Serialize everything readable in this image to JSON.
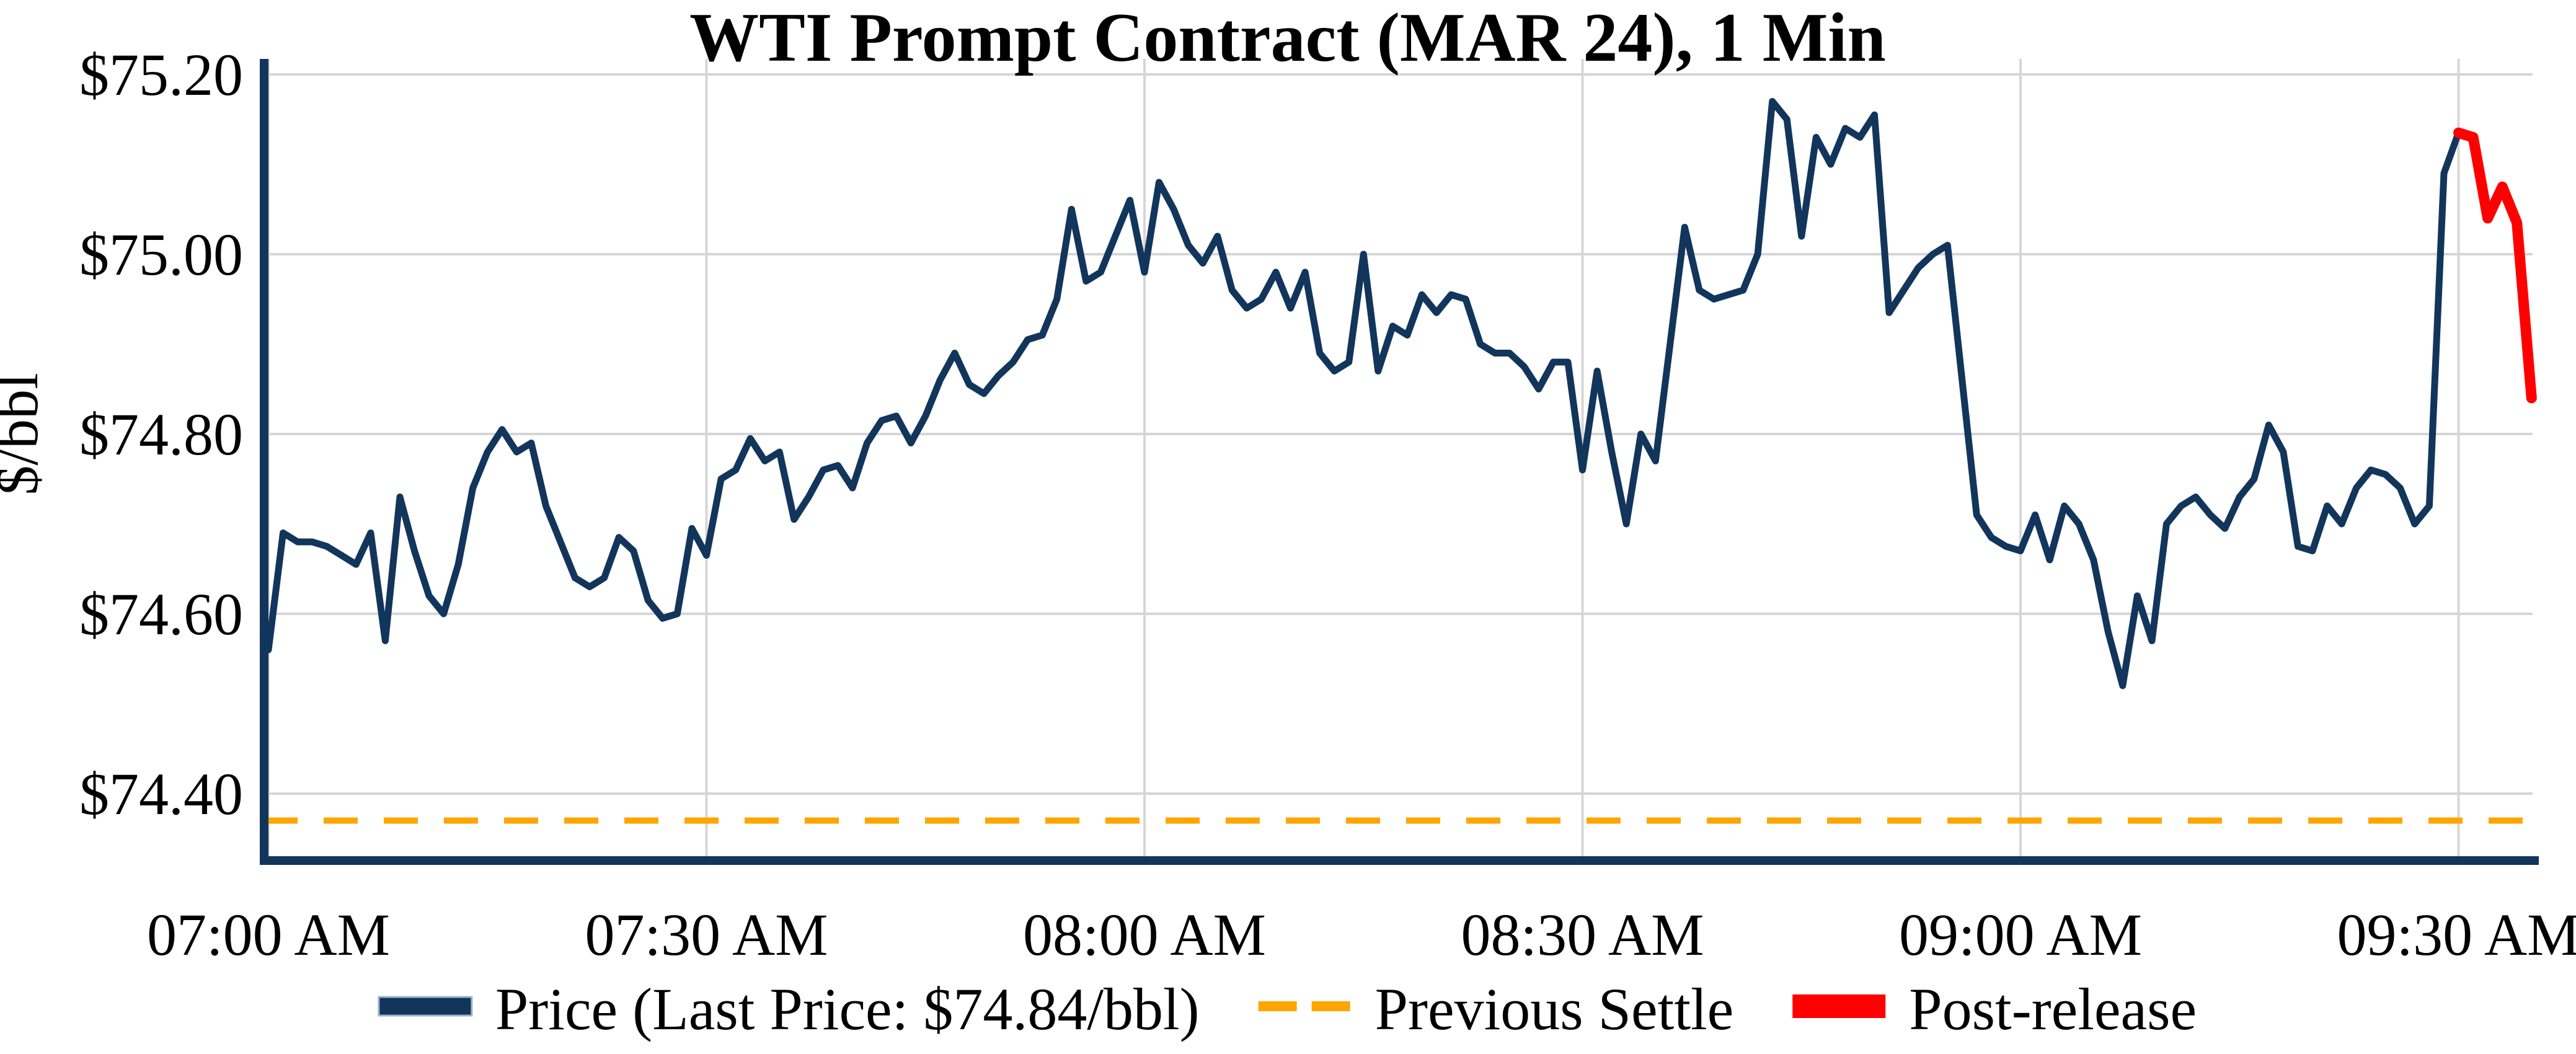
{
  "chart_data": {
    "type": "line",
    "title": "WTI Prompt Contract (MAR 24), 1 Min",
    "ylabel": "$/bbl",
    "xlabel": "",
    "x_unit": "minutes since 07:00 AM, 1-minute bars",
    "grid": true,
    "legend_position": "bottom",
    "ylim": [
      74.325,
      75.215
    ],
    "xlim_minutes": [
      -0.35,
      155.3
    ],
    "last_price_label": "$74.84/bbl",
    "previous_settle_value": 74.37,
    "colors": {
      "price": "#12355B",
      "previous_settle": "#FFA500",
      "post_release": "#FE0000",
      "gridline": "#D6D6D6",
      "axis": "#12355B"
    },
    "y_ticks": {
      "values": [
        75.2,
        75.0,
        74.8,
        74.6,
        74.4
      ],
      "labels": [
        "$75.20",
        "$75.00",
        "$74.80",
        "$74.60",
        "$74.40"
      ]
    },
    "x_ticks": {
      "minutes": [
        0,
        30,
        60,
        90,
        120,
        150
      ],
      "labels": [
        "07:00 AM",
        "07:30 AM",
        "08:00 AM",
        "08:30 AM",
        "09:00 AM",
        "09:30 AM"
      ]
    },
    "series": [
      {
        "name": "Price (Last Price: $74.84/bbl)",
        "type": "line",
        "color": "#12355B",
        "width": 11,
        "legend_swatch": "line",
        "start_minute": 0,
        "step_minutes": 1,
        "values": [
          74.56,
          74.69,
          74.68,
          74.68,
          74.675,
          74.665,
          74.655,
          74.69,
          74.57,
          74.73,
          74.67,
          74.62,
          74.6,
          74.655,
          74.74,
          74.78,
          74.805,
          74.78,
          74.79,
          74.72,
          74.68,
          74.64,
          74.63,
          74.64,
          74.685,
          74.67,
          74.615,
          74.595,
          74.6,
          74.695,
          74.665,
          74.75,
          74.76,
          74.795,
          74.77,
          74.78,
          74.705,
          74.73,
          74.76,
          74.765,
          74.74,
          74.79,
          74.815,
          74.82,
          74.79,
          74.82,
          74.86,
          74.89,
          74.855,
          74.845,
          74.865,
          74.88,
          74.905,
          74.91,
          74.95,
          75.05,
          74.97,
          74.98,
          75.02,
          75.06,
          74.98,
          75.08,
          75.05,
          75.01,
          74.99,
          75.02,
          74.96,
          74.94,
          74.95,
          74.98,
          74.94,
          74.98,
          74.89,
          74.87,
          74.88,
          75.0,
          74.87,
          74.92,
          74.91,
          74.955,
          74.935,
          74.955,
          74.95,
          74.9,
          74.89,
          74.89,
          74.875,
          74.85,
          74.88,
          74.88,
          74.76,
          74.87,
          74.78,
          74.7,
          74.8,
          74.77,
          74.9,
          75.03,
          74.96,
          74.95,
          74.955,
          74.96,
          75.0,
          75.17,
          75.15,
          75.02,
          75.13,
          75.1,
          75.14,
          75.13,
          75.155,
          74.935,
          74.96,
          74.985,
          75.0,
          75.01,
          74.86,
          74.71,
          74.685,
          74.675,
          74.67,
          74.71,
          74.66,
          74.72,
          74.7,
          74.66,
          74.58,
          74.52,
          74.62,
          74.57,
          74.7,
          74.72,
          74.73,
          74.71,
          74.695,
          74.73,
          74.75,
          74.81,
          74.78,
          74.675,
          74.67,
          74.72,
          74.7,
          74.74,
          74.76,
          74.755,
          74.74,
          74.7,
          74.72,
          75.09,
          75.135
        ]
      },
      {
        "name": "Previous Settle",
        "type": "hline",
        "color": "#FFA500",
        "width": 10,
        "legend_swatch": "dashes",
        "dash": [
          55,
          42
        ],
        "value": 74.37
      },
      {
        "name": "Post-release",
        "type": "line",
        "color": "#FE0000",
        "width": 17,
        "legend_swatch": "thick",
        "start_minute": 150,
        "step_minutes": 1,
        "values": [
          75.135,
          75.13,
          75.04,
          75.075,
          75.035,
          74.84
        ]
      }
    ]
  }
}
